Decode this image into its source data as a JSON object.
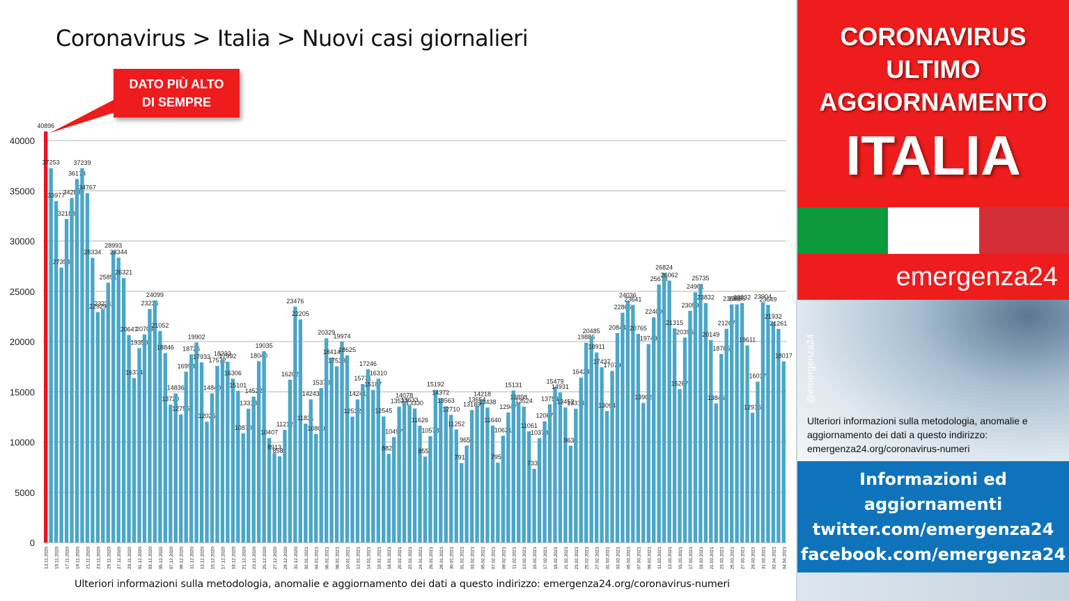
{
  "title": "Coronavirus > Italia > Nuovi casi giornalieri",
  "callout": {
    "line1": "DATO PIÙ ALTO",
    "line2": "DI SEMPRE"
  },
  "footnote": "Ulteriori informazioni sulla metodologia, anomalie e aggiornamento dei dati a questo indirizzo: emergenza24.org/coronavirus-numeri",
  "panel": {
    "line1": "CORONAVIRUS",
    "line2": "ULTIMO",
    "line3": "AGGIORNAMENTO",
    "country": "ITALIA",
    "brand": "emergenza24",
    "handle": "@emergenza24",
    "method": "Ulteriori informazioni sulla metodologia, anomalie e aggiornamento dei dati a questo indirizzo: emergenza24.org/coronavirus-numeri",
    "info": [
      "Informazioni ed",
      "aggiornamenti",
      "twitter.com/emergenza24",
      "facebook.com/emergenza24"
    ]
  },
  "colors": {
    "bar": "#4aa6c8",
    "highlight_bar": "#e8141c",
    "grid": "#b4b4b4",
    "red": "#ee1c1c",
    "blue": "#0f73bb"
  },
  "chart_data": {
    "type": "bar",
    "title": "Coronavirus > Italia > Nuovi casi giornalieri",
    "xlabel": "",
    "ylabel": "",
    "ylim": [
      0,
      40000
    ],
    "yticks": [
      0,
      5000,
      10000,
      15000,
      20000,
      25000,
      30000,
      35000,
      40000
    ],
    "grid": true,
    "legend": "none",
    "start_date": "2020-11-13",
    "highlight_index": 0,
    "values": [
      40896,
      37253,
      33977,
      27354,
      32188,
      34283,
      36173,
      37239,
      34767,
      28334,
      22929,
      23231,
      25851,
      28993,
      28344,
      26321,
      20647,
      16374,
      19350,
      20703,
      23236,
      24099,
      21052,
      18846,
      13720,
      14836,
      12755,
      16998,
      18726,
      19902,
      17933,
      12025,
      14840,
      17572,
      18233,
      17992,
      16306,
      15101,
      10870,
      13318,
      14522,
      18040,
      19035,
      10407,
      8913,
      8583,
      11212,
      16202,
      23476,
      22205,
      11831,
      14243,
      10800,
      15370,
      20329,
      18414,
      17533,
      19974,
      18625,
      12532,
      14241,
      15771,
      17246,
      15187,
      16310,
      12545,
      8824,
      10497,
      13522,
      14078,
      13633,
      13330,
      11626,
      8555,
      10578,
      15192,
      14372,
      13563,
      12710,
      11252,
      7916,
      9653,
      13189,
      13654,
      14218,
      13438,
      11640,
      7952,
      10621,
      12947,
      15131,
      13898,
      13524,
      11061,
      7333,
      10378,
      12067,
      13753,
      15479,
      14931,
      13452,
      9630,
      13314,
      16424,
      19886,
      20485,
      18911,
      17437,
      13094,
      17079,
      20844,
      22865,
      24036,
      23641,
      20765,
      13902,
      19749,
      22409,
      25673,
      26824,
      26062,
      21315,
      15267,
      20396,
      23059,
      24901,
      25735,
      23832,
      20149,
      13846,
      18765,
      21267,
      23696,
      23696,
      23832,
      19611,
      12916,
      16017,
      23904,
      23649,
      21932,
      21261,
      18017
    ],
    "tick_labels": [
      "13.11.2020",
      "15.11.2020",
      "17.11.2020",
      "19.11.2020",
      "21.11.2020",
      "23.11.2020",
      "25.11.2020",
      "27.11.2020",
      "29.11.2020",
      "01.12.2020",
      "03.12.2020",
      "05.12.2020",
      "07.12.2020",
      "09.12.2020",
      "11.12.2020",
      "13.12.2020",
      "15.12.2020",
      "17.12.2020",
      "19.12.2020",
      "21.12.2020",
      "23.12.2020",
      "25.12.2020",
      "27.12.2020",
      "29.12.2020",
      "31.12.2020",
      "02.01.2021",
      "04.01.2021",
      "06.01.2021",
      "08.01.2021",
      "10.01.2021",
      "12.01.2021",
      "14.01.2021",
      "16.01.2021",
      "18.01.2021",
      "20.01.2021",
      "22.01.2021",
      "24.01.2021",
      "26.01.2021",
      "28.01.2021",
      "30.01.2021",
      "01.02.2021",
      "03.02.2021",
      "05.02.2021",
      "07.02.2021",
      "09.02.2021",
      "11.02.2021",
      "13.02.2021",
      "15.02.2021",
      "17.02.2021",
      "19.02.2021",
      "21.02.2021",
      "23.02.2021",
      "25.02.2021",
      "27.02.2021",
      "01.03.2021",
      "03.03.2021",
      "05.03.2021",
      "07.03.2021",
      "09.03.2021",
      "11.03.2021",
      "13.03.2021",
      "15.03.2021",
      "17.03.2021",
      "19.03.2021",
      "21.03.2021",
      "23.03.2021",
      "25.03.2021",
      "27.03.2021",
      "29.03.2021",
      "31.03.2021",
      "02.04.2021",
      "04.04.2021"
    ]
  }
}
